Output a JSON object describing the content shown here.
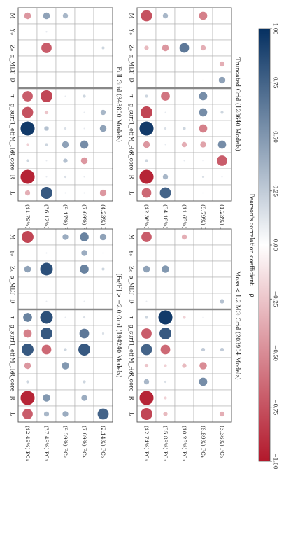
{
  "figure": {
    "variables": [
      "M",
      "Y₀",
      "Z₀",
      "α_MLT",
      "D",
      "τ",
      "g_surf",
      "T_eff",
      "M_He",
      "R_core",
      "R",
      "L"
    ],
    "colorbar": {
      "label": "Pearson's correlation coefficient",
      "symbol": "ρ",
      "ticks": [
        "−1.00",
        "−0.75",
        "−0.50",
        "−0.25",
        "0.00",
        "0.25",
        "0.50",
        "0.75",
        "1.00"
      ],
      "range": [
        -1,
        1
      ],
      "colors": {
        "low": "#b2182b",
        "mid": "#ffffff",
        "high": "#053061"
      }
    }
  },
  "chart_data": [
    {
      "type": "heatmap",
      "title": "Full Grid   (348800 Models)",
      "rows": [
        "(41.79%) PC₁",
        "(36.12%) PC₂",
        "(9.17%) PC₃",
        "(7.69%) PC₄",
        "(4.23%) PC₅"
      ],
      "columns": [
        "M",
        "Y₀",
        "Z₀",
        "α_MLT",
        "D",
        "τ",
        "g_surf",
        "T_eff",
        "M_He",
        "R_core",
        "R",
        "L"
      ],
      "values": [
        [
          -0.45,
          0.0,
          0.0,
          0.0,
          0.0,
          -0.7,
          -0.75,
          0.95,
          -0.2,
          0.2,
          -0.95,
          -0.35
        ],
        [
          0.45,
          0.1,
          -0.7,
          0.0,
          0.0,
          -0.8,
          -0.25,
          0.3,
          0.2,
          0.1,
          0.1,
          0.8
        ],
        [
          0.35,
          0.0,
          0.0,
          0.0,
          0.0,
          0.1,
          0.0,
          0.15,
          0.45,
          0.3,
          0.15,
          0.1
        ],
        [
          0.0,
          0.0,
          0.0,
          0.0,
          0.0,
          0.2,
          0.1,
          0.1,
          0.55,
          -0.45,
          0.1,
          0.1
        ],
        [
          0.0,
          0.0,
          0.2,
          0.0,
          0.0,
          0.0,
          0.35,
          0.45,
          0.0,
          0.0,
          0.0,
          -0.45
        ]
      ]
    },
    {
      "type": "heatmap",
      "title": "Truncated Grid   (128640 Models)",
      "rows": [
        "(42.36%) PC₁",
        "(34.18%) PC₂",
        "(11.65%) PC₃",
        "(9.79%) PC₄",
        "(1.23%) PC₅"
      ],
      "columns": [
        "M",
        "Y₀",
        "Z₀",
        "α_MLT",
        "D",
        "τ",
        "g_surf",
        "T_eff",
        "M_He",
        "R_core",
        "R",
        "L"
      ],
      "values": [
        [
          -0.75,
          0.0,
          -0.3,
          0.0,
          0.0,
          0.2,
          -0.8,
          0.95,
          -0.45,
          0.2,
          -0.95,
          -0.65
        ],
        [
          0.35,
          0.0,
          -0.45,
          0.0,
          0.0,
          -0.6,
          0.1,
          0.15,
          0.1,
          0.0,
          0.35,
          0.75
        ],
        [
          0.0,
          0.0,
          0.65,
          0.0,
          0.0,
          0.0,
          0.0,
          0.2,
          -0.35,
          0.1,
          0.0,
          0.0
        ],
        [
          -0.55,
          0.0,
          -0.35,
          0.0,
          0.1,
          0.55,
          0.55,
          -0.55,
          -0.4,
          0.1,
          0.15,
          0.1
        ],
        [
          0.0,
          0.0,
          0.0,
          -0.35,
          0.45,
          0.0,
          0.2,
          0.0,
          0.55,
          -0.7,
          0.1,
          0.0
        ]
      ]
    },
    {
      "type": "heatmap",
      "title": "[Fe/H] > −2.0 Grid   (194240 Models)",
      "rows": [
        "(42.49%) PC₁",
        "(37.49%) PC₂",
        "(9.39%) PC₃",
        "(7.69%) PC₄",
        "(2.14%) PC₅"
      ],
      "columns": [
        "M",
        "Y₀",
        "Z₀",
        "α_MLT",
        "D",
        "τ",
        "g_surf",
        "T_eff",
        "M_He",
        "R_core",
        "R",
        "L"
      ],
      "values": [
        [
          -0.8,
          0.0,
          0.45,
          0.0,
          0.0,
          0.6,
          -0.55,
          0.8,
          -0.45,
          0.2,
          -0.95,
          -0.7
        ],
        [
          0.0,
          0.1,
          0.85,
          0.0,
          0.1,
          0.85,
          0.8,
          -0.65,
          0.0,
          0.0,
          0.5,
          0.35
        ],
        [
          0.4,
          0.0,
          0.0,
          0.0,
          0.0,
          0.1,
          0.0,
          0.2,
          0.5,
          0.0,
          0.0,
          0.4
        ],
        [
          0.6,
          0.4,
          0.6,
          0.0,
          0.1,
          0.15,
          0.65,
          0.8,
          0.0,
          0.2,
          0.4,
          0.0
        ],
        [
          0.45,
          0.1,
          0.2,
          0.0,
          0.0,
          0.0,
          0.15,
          0.0,
          0.0,
          0.0,
          0.0,
          0.75
        ]
      ]
    },
    {
      "type": "heatmap",
      "title": "Mass < 1.2 M☉ Grid   (203904 Models)",
      "rows": [
        "(42.74%) PC₁",
        "(35.89%) PC₂",
        "(10.25%) PC₃",
        "(6.89%) PC₄",
        "(3.36%) PC₅"
      ],
      "columns": [
        "M",
        "Y₀",
        "Z₀",
        "α_MLT",
        "D",
        "τ",
        "g_surf",
        "T_eff",
        "M_He",
        "R_core",
        "R",
        "L"
      ],
      "values": [
        [
          -0.7,
          0.0,
          0.45,
          0.0,
          0.1,
          0.2,
          -0.7,
          0.75,
          -0.25,
          0.35,
          -0.95,
          -0.8
        ],
        [
          0.0,
          0.0,
          0.5,
          0.0,
          0.0,
          0.95,
          0.8,
          -0.65,
          -0.2,
          0.15,
          -0.2,
          -0.3
        ],
        [
          -0.35,
          0.0,
          0.0,
          0.0,
          0.0,
          -0.2,
          0.0,
          0.0,
          -0.3,
          0.0,
          0.0,
          0.0
        ],
        [
          0.0,
          0.0,
          0.0,
          0.0,
          0.0,
          0.1,
          0.0,
          0.25,
          -0.5,
          0.55,
          0.0,
          0.0
        ],
        [
          0.0,
          0.0,
          0.0,
          0.0,
          0.3,
          0.0,
          0.0,
          0.25,
          0.0,
          0.0,
          0.0,
          -0.35
        ]
      ]
    }
  ]
}
